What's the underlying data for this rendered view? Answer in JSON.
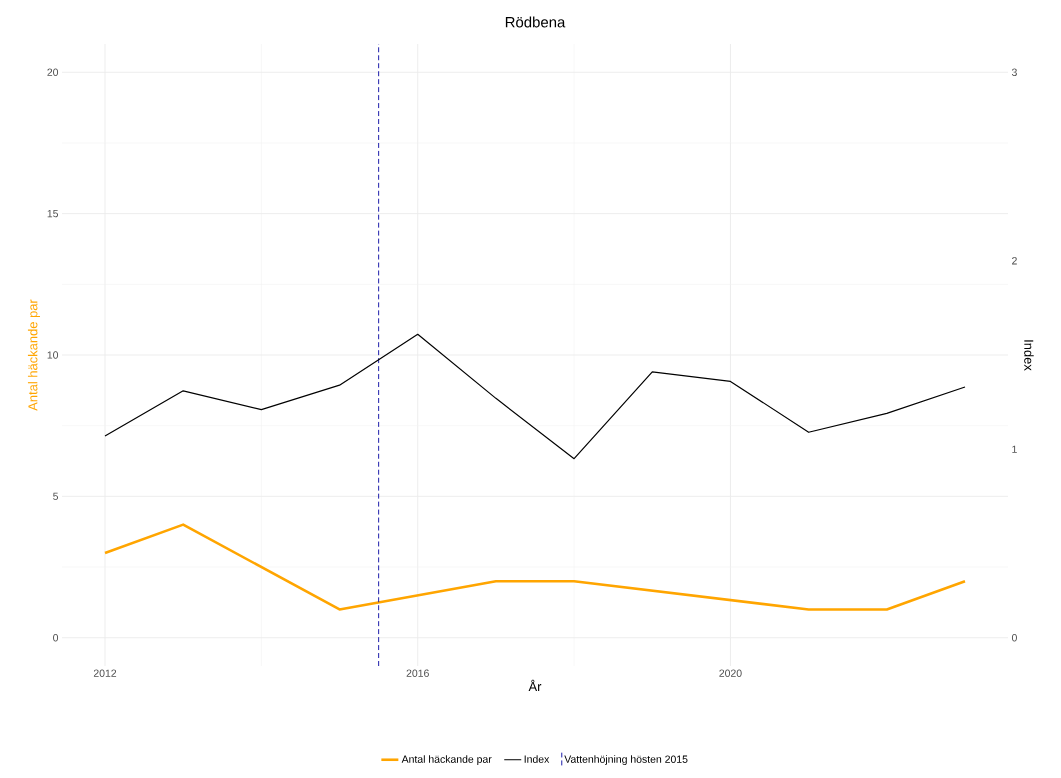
{
  "chart_data": {
    "type": "line",
    "title": "Rödbena",
    "xlabel": "År",
    "ylabel": "Antal häckande par",
    "y2label": "Index",
    "xlim": [
      2011.45,
      2023.55
    ],
    "xticks": [
      2012,
      2016,
      2020
    ],
    "ylim": [
      -1,
      21
    ],
    "yticks": [
      0,
      5,
      10,
      15,
      20
    ],
    "y2lim": [
      -0.15,
      3.15
    ],
    "y2ticks": [
      0,
      1,
      2,
      3
    ],
    "grid": true,
    "legend": "bottom",
    "series": [
      {
        "name": "Antal häckande par",
        "color": "#ffa500",
        "x": [
          2012,
          2013,
          2015,
          2017,
          2018,
          2021,
          2022,
          2023
        ],
        "values": [
          3,
          4,
          1,
          2,
          2,
          1,
          1,
          2
        ]
      },
      {
        "name": "Index",
        "axis": "y2",
        "color": "#000000",
        "x": [
          2012,
          2013,
          2014,
          2015,
          2016,
          2017,
          2018,
          2019,
          2020,
          2021,
          2022,
          2023
        ],
        "values": [
          1.07,
          1.31,
          1.21,
          1.34,
          1.61,
          1.27,
          0.95,
          1.41,
          1.36,
          1.09,
          1.19,
          1.33
        ]
      }
    ],
    "ref_lines": [
      {
        "axis": "x",
        "value": 2015.5,
        "label": "Vattenhöjning hösten 2015",
        "color": "#1c1caa",
        "line_style": "dashed"
      }
    ]
  }
}
